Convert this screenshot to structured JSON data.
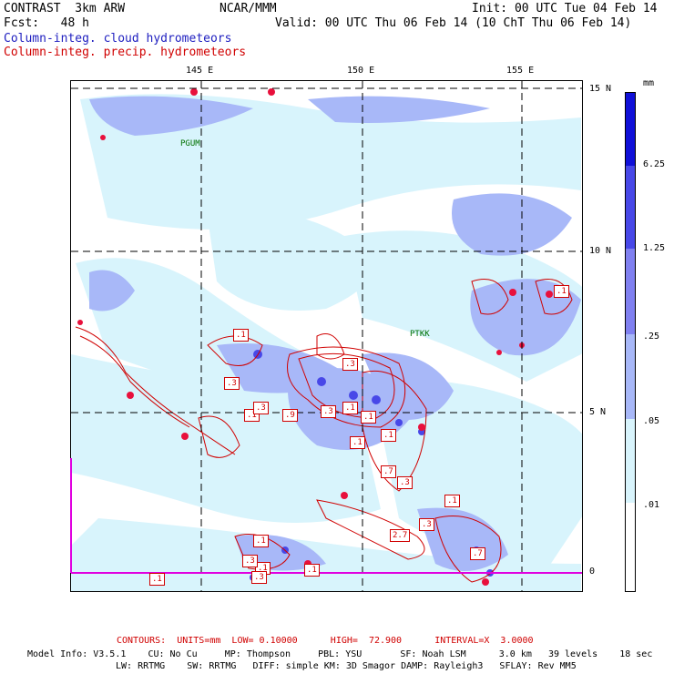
{
  "header": {
    "model_line": "CONTRAST  3km ARW",
    "org": "NCAR/MMM",
    "init": "Init: 00 UTC Tue 04 Feb 14",
    "fcst": "Fcst:   48 h",
    "valid": "Valid: 00 UTC Thu 06 Feb 14 (10 ChT Thu 06 Feb 14)",
    "field1": "Column-integ. cloud hydrometeors",
    "field2": "Column-integ. precip. hydrometeors"
  },
  "map": {
    "lon_labels": [
      "145 E",
      "150 E",
      "155 E"
    ],
    "lat_labels": [
      "15 N",
      "10 N",
      "5 N",
      "0"
    ],
    "stations": [
      "PGUM",
      "PTKK"
    ],
    "contour_labels": [
      ".1",
      ".3",
      ".1",
      ".3",
      ".9",
      ".3",
      ".3",
      ".1",
      ".1",
      ".1",
      ".1",
      ".3",
      ".7",
      ".3",
      "2.7",
      ".1",
      ".1",
      ".3",
      ".1",
      ".7",
      ".1",
      ".3",
      ".1",
      ".1"
    ]
  },
  "colorbar": {
    "unit": "mm",
    "labels": [
      "6.25",
      "1.25",
      ".25",
      ".05",
      ".01"
    ],
    "colors": [
      "#1010d8",
      "#4848e8",
      "#8080f0",
      "#a8b8f8",
      "#d8f4fc",
      "#ffffff"
    ]
  },
  "footer": {
    "contours": "CONTOURS:  UNITS=mm  LOW= 0.10000      HIGH=  72.900      INTERVAL=X  3.0000",
    "model_info": "Model Info: V3.5.1    CU: No Cu     MP: Thompson     PBL: YSU       SF: Noah LSM      3.0 km   39 levels    18 sec",
    "model_info2": "LW: RRTMG    SW: RRTMG   DIFF: simple KM: 3D Smagor DAMP: Rayleigh3   SFLAY: Rev MM5"
  }
}
